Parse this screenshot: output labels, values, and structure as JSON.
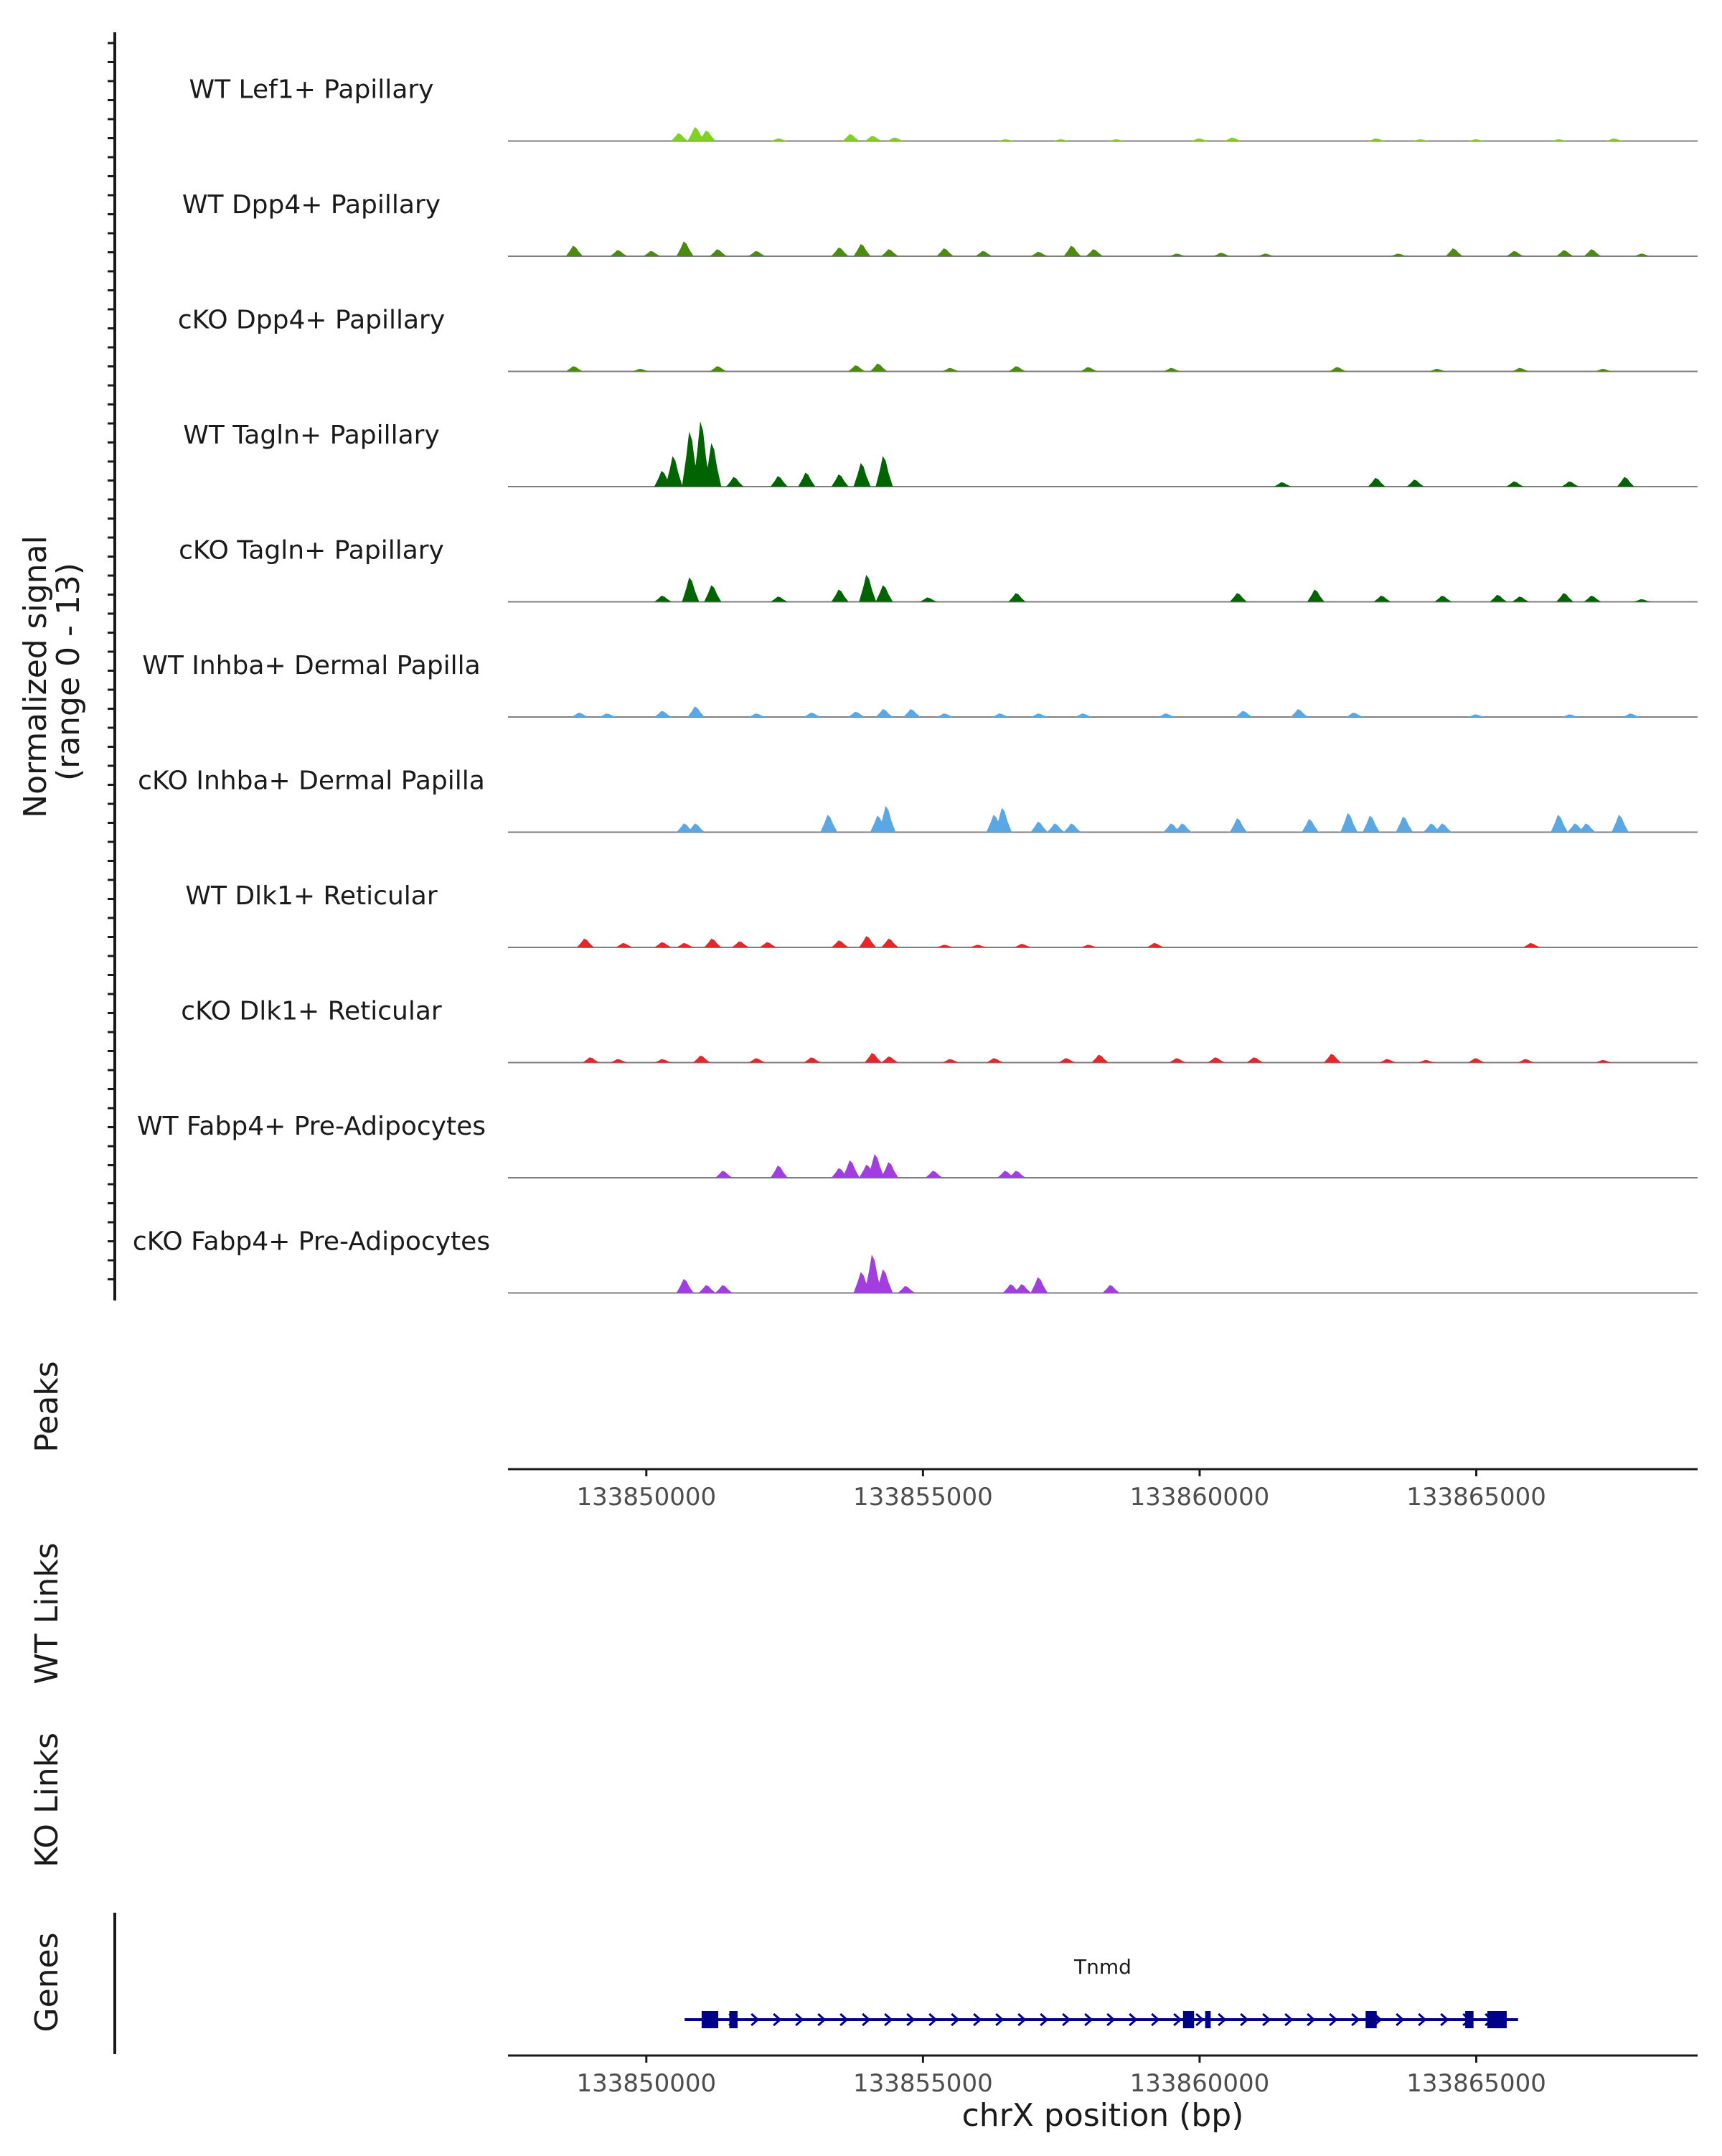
{
  "chart_data": {
    "type": "coverage",
    "chromosome": "chrX",
    "xlim": [
      133847500,
      133869000
    ],
    "xlabel": "chrX position (bp)",
    "x_ticks": [
      133850000,
      133855000,
      133860000,
      133865000
    ],
    "x_tick_labels": [
      "133850000",
      "133855000",
      "133860000",
      "133865000"
    ],
    "signal_axis": {
      "label_line1": "Normalized signal",
      "label_line2": "(range 0 - 13)",
      "ylim": [
        0,
        13
      ]
    },
    "tracks": [
      {
        "name": "WT Lef1+ Papillary",
        "color": "#7ed321",
        "peaks": [
          [
            133850600,
            0.9
          ],
          [
            133850900,
            1.6
          ],
          [
            133851100,
            1.2
          ],
          [
            133852400,
            0.3
          ],
          [
            133853700,
            0.8
          ],
          [
            133854100,
            0.6
          ],
          [
            133854500,
            0.4
          ],
          [
            133856500,
            0.2
          ],
          [
            133857500,
            0.2
          ],
          [
            133858500,
            0.2
          ],
          [
            133860000,
            0.3
          ],
          [
            133860600,
            0.4
          ],
          [
            133863200,
            0.3
          ],
          [
            133864000,
            0.2
          ],
          [
            133865000,
            0.2
          ],
          [
            133866500,
            0.2
          ],
          [
            133867500,
            0.3
          ]
        ]
      },
      {
        "name": "WT Dpp4+ Papillary",
        "color": "#4a8c0c",
        "peaks": [
          [
            133848700,
            1.2
          ],
          [
            133849500,
            0.7
          ],
          [
            133850100,
            0.6
          ],
          [
            133850700,
            1.7
          ],
          [
            133851300,
            0.8
          ],
          [
            133852000,
            0.6
          ],
          [
            133853500,
            1.0
          ],
          [
            133853900,
            1.4
          ],
          [
            133854400,
            0.8
          ],
          [
            133855400,
            0.9
          ],
          [
            133856100,
            0.6
          ],
          [
            133857100,
            0.5
          ],
          [
            133857700,
            1.2
          ],
          [
            133858100,
            0.8
          ],
          [
            133859600,
            0.3
          ],
          [
            133860400,
            0.4
          ],
          [
            133861200,
            0.3
          ],
          [
            133863600,
            0.3
          ],
          [
            133864600,
            0.9
          ],
          [
            133865700,
            0.6
          ],
          [
            133866600,
            0.7
          ],
          [
            133867100,
            0.8
          ],
          [
            133868000,
            0.3
          ]
        ]
      },
      {
        "name": "cKO Dpp4+ Papillary",
        "color": "#4a8c0c",
        "peaks": [
          [
            133848700,
            0.6
          ],
          [
            133849900,
            0.3
          ],
          [
            133851300,
            0.6
          ],
          [
            133853800,
            0.7
          ],
          [
            133854200,
            0.9
          ],
          [
            133855500,
            0.4
          ],
          [
            133856700,
            0.6
          ],
          [
            133858000,
            0.5
          ],
          [
            133859500,
            0.4
          ],
          [
            133862500,
            0.5
          ],
          [
            133864300,
            0.3
          ],
          [
            133865800,
            0.4
          ],
          [
            133867300,
            0.3
          ]
        ]
      },
      {
        "name": "WT Tagln+ Papillary",
        "color": "#006400",
        "peaks": [
          [
            133850300,
            1.8
          ],
          [
            133850500,
            3.5
          ],
          [
            133850800,
            6.3
          ],
          [
            133851000,
            7.5
          ],
          [
            133851200,
            5.0
          ],
          [
            133851600,
            1.1
          ],
          [
            133852400,
            1.2
          ],
          [
            133852900,
            1.6
          ],
          [
            133853500,
            1.4
          ],
          [
            133853900,
            2.7
          ],
          [
            133854300,
            3.5
          ],
          [
            133861500,
            0.5
          ],
          [
            133863200,
            1.0
          ],
          [
            133863900,
            0.8
          ],
          [
            133865700,
            0.6
          ],
          [
            133866700,
            0.6
          ],
          [
            133867700,
            1.1
          ]
        ]
      },
      {
        "name": "cKO Tagln+ Papillary",
        "color": "#006400",
        "peaks": [
          [
            133850300,
            0.7
          ],
          [
            133850800,
            2.8
          ],
          [
            133851200,
            1.9
          ],
          [
            133852400,
            0.6
          ],
          [
            133853500,
            1.4
          ],
          [
            133854000,
            3.1
          ],
          [
            133854300,
            1.9
          ],
          [
            133855100,
            0.5
          ],
          [
            133856700,
            1.0
          ],
          [
            133860700,
            1.0
          ],
          [
            133862100,
            1.4
          ],
          [
            133863300,
            0.7
          ],
          [
            133864400,
            0.7
          ],
          [
            133865400,
            0.8
          ],
          [
            133865800,
            0.6
          ],
          [
            133866600,
            1.0
          ],
          [
            133867100,
            0.7
          ],
          [
            133868000,
            0.3
          ]
        ]
      },
      {
        "name": "WT Inhba+ Dermal Papilla",
        "color": "#5aa7e3",
        "peaks": [
          [
            133848800,
            0.5
          ],
          [
            133849300,
            0.4
          ],
          [
            133850300,
            0.7
          ],
          [
            133850900,
            1.2
          ],
          [
            133852000,
            0.4
          ],
          [
            133853000,
            0.5
          ],
          [
            133853800,
            0.6
          ],
          [
            133854300,
            0.9
          ],
          [
            133854800,
            0.9
          ],
          [
            133855400,
            0.4
          ],
          [
            133856400,
            0.4
          ],
          [
            133857100,
            0.4
          ],
          [
            133857900,
            0.4
          ],
          [
            133859400,
            0.4
          ],
          [
            133860800,
            0.7
          ],
          [
            133861800,
            0.9
          ],
          [
            133862800,
            0.5
          ],
          [
            133865000,
            0.3
          ],
          [
            133866700,
            0.3
          ],
          [
            133867800,
            0.4
          ]
        ]
      },
      {
        "name": "cKO Inhba+ Dermal Papilla",
        "color": "#5aa7e3",
        "peaks": [
          [
            133850700,
            1.0
          ],
          [
            133850900,
            1.0
          ],
          [
            133853300,
            2.0
          ],
          [
            133854200,
            1.9
          ],
          [
            133854350,
            3.0
          ],
          [
            133856300,
            2.0
          ],
          [
            133856450,
            2.8
          ],
          [
            133857100,
            1.2
          ],
          [
            133857400,
            1.0
          ],
          [
            133857700,
            1.0
          ],
          [
            133859500,
            1.0
          ],
          [
            133859700,
            1.0
          ],
          [
            133860700,
            1.6
          ],
          [
            133862000,
            1.5
          ],
          [
            133862700,
            2.2
          ],
          [
            133863100,
            1.9
          ],
          [
            133863700,
            1.8
          ],
          [
            133864200,
            1.0
          ],
          [
            133864400,
            1.0
          ],
          [
            133866500,
            2.0
          ],
          [
            133866800,
            1.0
          ],
          [
            133867000,
            1.0
          ],
          [
            133867600,
            2.0
          ]
        ]
      },
      {
        "name": "WT Dlk1+ Reticular",
        "color": "#e8262a",
        "peaks": [
          [
            133848900,
            1.0
          ],
          [
            133849600,
            0.5
          ],
          [
            133850300,
            0.6
          ],
          [
            133850700,
            0.5
          ],
          [
            133851200,
            1.0
          ],
          [
            133851700,
            0.7
          ],
          [
            133852200,
            0.6
          ],
          [
            133853500,
            0.8
          ],
          [
            133854000,
            1.3
          ],
          [
            133854400,
            1.0
          ],
          [
            133855400,
            0.3
          ],
          [
            133856000,
            0.3
          ],
          [
            133856800,
            0.4
          ],
          [
            133858000,
            0.3
          ],
          [
            133859200,
            0.5
          ],
          [
            133866000,
            0.5
          ]
        ]
      },
      {
        "name": "cKO Dlk1+ Reticular",
        "color": "#e8262a",
        "peaks": [
          [
            133849000,
            0.6
          ],
          [
            133849500,
            0.4
          ],
          [
            133850300,
            0.4
          ],
          [
            133851000,
            0.8
          ],
          [
            133852000,
            0.5
          ],
          [
            133853000,
            0.6
          ],
          [
            133854100,
            1.1
          ],
          [
            133854400,
            0.7
          ],
          [
            133855500,
            0.4
          ],
          [
            133856300,
            0.5
          ],
          [
            133857600,
            0.5
          ],
          [
            133858200,
            0.9
          ],
          [
            133859600,
            0.5
          ],
          [
            133860300,
            0.6
          ],
          [
            133861000,
            0.6
          ],
          [
            133862400,
            1.0
          ],
          [
            133863400,
            0.4
          ],
          [
            133864100,
            0.3
          ],
          [
            133865000,
            0.5
          ],
          [
            133865900,
            0.4
          ],
          [
            133867300,
            0.3
          ]
        ]
      },
      {
        "name": "WT Fabp4+ Pre-Adipocytes",
        "color": "#a23ee0",
        "peaks": [
          [
            133851400,
            0.8
          ],
          [
            133852400,
            1.4
          ],
          [
            133853500,
            1.1
          ],
          [
            133853700,
            2.0
          ],
          [
            133854000,
            1.5
          ],
          [
            133854150,
            2.7
          ],
          [
            133854400,
            1.8
          ],
          [
            133855200,
            0.8
          ],
          [
            133856500,
            0.8
          ],
          [
            133856700,
            0.8
          ]
        ]
      },
      {
        "name": "cKO Fabp4+ Pre-Adipocytes",
        "color": "#a23ee0",
        "peaks": [
          [
            133850700,
            1.6
          ],
          [
            133851100,
            0.9
          ],
          [
            133851400,
            0.9
          ],
          [
            133853900,
            2.4
          ],
          [
            133854100,
            4.4
          ],
          [
            133854300,
            2.7
          ],
          [
            133854700,
            0.8
          ],
          [
            133856600,
            1.0
          ],
          [
            133856800,
            1.0
          ],
          [
            133857100,
            1.8
          ],
          [
            133858400,
            0.9
          ]
        ]
      }
    ],
    "annotation_tracks": [
      "Peaks",
      "WT Links",
      "KO Links",
      "Genes"
    ],
    "gene": {
      "name": "Tnmd",
      "start": 133850900,
      "end": 133865600,
      "strand": "+",
      "color": "#00008b",
      "exons": [
        [
          133851000,
          133851300
        ],
        [
          133851500,
          133851650
        ],
        [
          133859700,
          133859900
        ],
        [
          133860100,
          133860200
        ],
        [
          133863000,
          133863200
        ],
        [
          133864800,
          133864950
        ],
        [
          133865200,
          133865550
        ]
      ]
    }
  }
}
